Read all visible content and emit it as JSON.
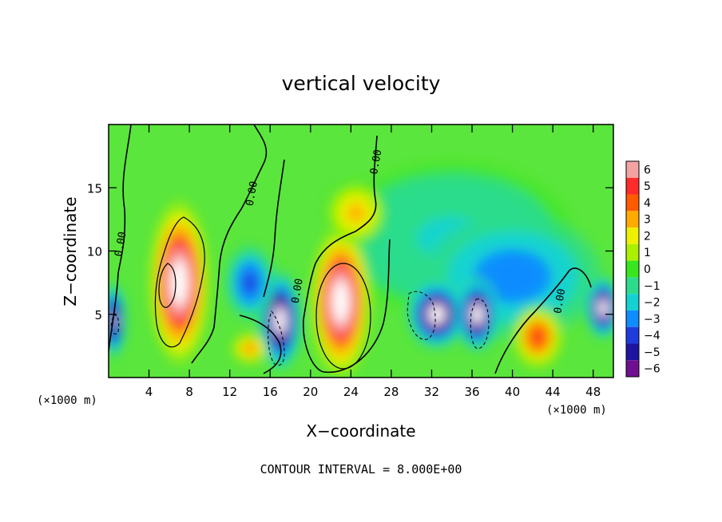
{
  "chart_data": {
    "type": "heatmap",
    "title": "vertical velocity",
    "xlabel": "X−coordinate",
    "ylabel": "Z−coordinate",
    "x_unit_note": "(×1000 m)",
    "y_unit_note": "(×1000 m)",
    "footer": "CONTOUR INTERVAL = 8.000E+00",
    "xlim": [
      0,
      50
    ],
    "ylim": [
      0,
      20
    ],
    "x_ticks": [
      {
        "value": 4,
        "label": "4"
      },
      {
        "value": 8,
        "label": "8"
      },
      {
        "value": 12,
        "label": "12"
      },
      {
        "value": 16,
        "label": "16"
      },
      {
        "value": 20,
        "label": "20"
      },
      {
        "value": 24,
        "label": "24"
      },
      {
        "value": 28,
        "label": "28"
      },
      {
        "value": 32,
        "label": "32"
      },
      {
        "value": 36,
        "label": "36"
      },
      {
        "value": 40,
        "label": "40"
      },
      {
        "value": 44,
        "label": "44"
      },
      {
        "value": 48,
        "label": "48"
      }
    ],
    "y_ticks": [
      {
        "value": 5,
        "label": "5"
      },
      {
        "value": 10,
        "label": "10"
      },
      {
        "value": 15,
        "label": "15"
      }
    ],
    "colorbar": {
      "levels": [
        6,
        5,
        4,
        3,
        2,
        1,
        0,
        -1,
        -2,
        -3,
        -4,
        -5,
        -6
      ],
      "labels": [
        "6",
        "5",
        "4",
        "3",
        "2",
        "1",
        "0",
        "−1",
        "−2",
        "−3",
        "−4",
        "−5",
        "−6"
      ],
      "colors": [
        "#f4a3a3",
        "#ff2a2a",
        "#ff5a00",
        "#ffaa00",
        "#eef000",
        "#aaf000",
        "#37e61e",
        "#2cdc8c",
        "#14d2d2",
        "#0f8cff",
        "#1e3cdc",
        "#1e14a0",
        "#6e1090"
      ]
    },
    "zero_contour_labels": [
      {
        "x": 1.5,
        "z": 10.5,
        "text": "0.00"
      },
      {
        "x": 14.5,
        "z": 14.5,
        "text": "0.00"
      },
      {
        "x": 19.0,
        "z": 6.8,
        "text": "0.00"
      },
      {
        "x": 26.8,
        "z": 17.0,
        "text": "0.00"
      },
      {
        "x": 45.0,
        "z": 6.0,
        "text": "0.00"
      }
    ],
    "field_features": [
      {
        "kind": "updraft",
        "x": 7.0,
        "z": 7.5,
        "rx": 3.0,
        "rz": 6.5,
        "peak": 8
      },
      {
        "kind": "updraft",
        "x": 23.0,
        "z": 6.0,
        "rx": 3.0,
        "rz": 6.0,
        "peak": 8
      },
      {
        "kind": "updraft",
        "x": 42.5,
        "z": 3.2,
        "rx": 2.5,
        "rz": 2.5,
        "peak": 5
      },
      {
        "kind": "updraft",
        "x": 24.5,
        "z": 13.0,
        "rx": 3.0,
        "rz": 2.5,
        "peak": 3
      },
      {
        "kind": "updraft",
        "x": 14.0,
        "z": 2.3,
        "rx": 1.8,
        "rz": 1.2,
        "peak": 3.5
      },
      {
        "kind": "downdraft",
        "x": 17.0,
        "z": 4.5,
        "rx": 2.2,
        "rz": 4.0,
        "peak": -8
      },
      {
        "kind": "downdraft",
        "x": 32.5,
        "z": 5.0,
        "rx": 3.0,
        "rz": 2.8,
        "peak": -8
      },
      {
        "kind": "downdraft",
        "x": 36.5,
        "z": 5.0,
        "rx": 2.2,
        "rz": 3.0,
        "peak": -8
      },
      {
        "kind": "downdraft",
        "x": 49.0,
        "z": 5.5,
        "rx": 1.8,
        "rz": 2.5,
        "peak": -8
      },
      {
        "kind": "downdraft",
        "x": 0.5,
        "z": 4.5,
        "rx": 1.2,
        "rz": 3.0,
        "peak": -7
      },
      {
        "kind": "downdraft",
        "x": 14.0,
        "z": 7.5,
        "rx": 2.5,
        "rz": 3.0,
        "peak": -4.5
      },
      {
        "kind": "downdraft",
        "x": 40.0,
        "z": 8.0,
        "rx": 9.0,
        "rz": 5.0,
        "peak": -3.5
      },
      {
        "kind": "downdraft",
        "x": 34.0,
        "z": 11.0,
        "rx": 12.0,
        "rz": 6.0,
        "peak": -2
      }
    ]
  }
}
